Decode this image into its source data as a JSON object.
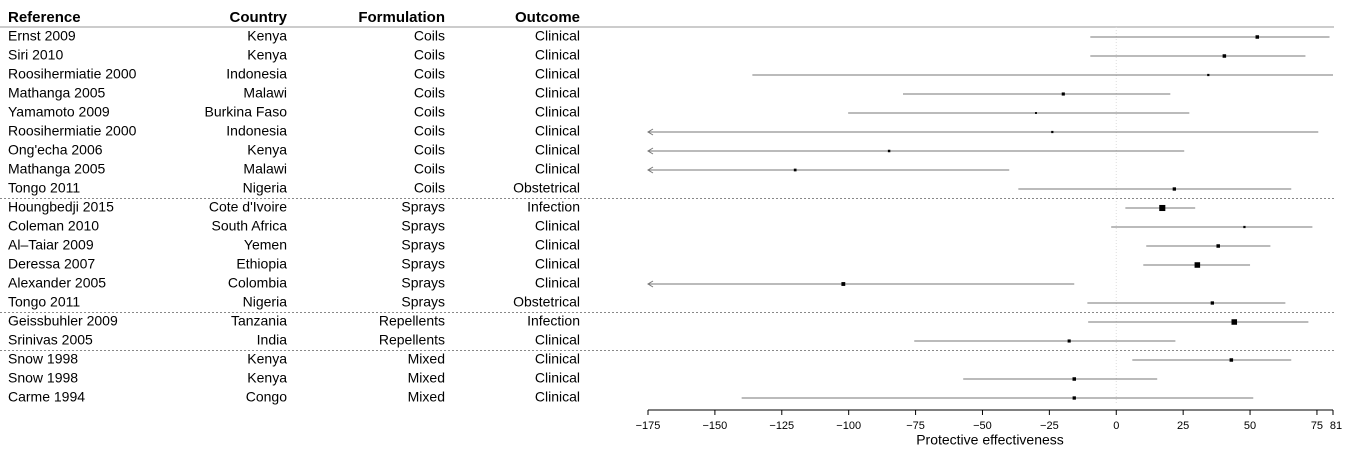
{
  "chart_data": {
    "type": "forest",
    "headers": {
      "reference": "Reference",
      "country": "Country",
      "formulation": "Formulation",
      "outcome": "Outcome"
    },
    "rows": [
      {
        "reference": "Ernst 2009",
        "country": "Kenya",
        "formulation": "Coils",
        "outcome": "Clinical",
        "estimate": 52.7,
        "lower": -9.7,
        "upper": 79.7,
        "weight": 1
      },
      {
        "reference": "Siri 2010",
        "country": "Kenya",
        "formulation": "Coils",
        "outcome": "Clinical",
        "estimate": 40.4,
        "lower": -9.7,
        "upper": 70.7,
        "weight": 1
      },
      {
        "reference": "Roosihermiatie 2000",
        "country": "Indonesia",
        "formulation": "Coils",
        "outcome": "Clinical",
        "estimate": 34.4,
        "lower": -136,
        "upper": 81,
        "weight": 0.4
      },
      {
        "reference": "Mathanga 2005",
        "country": "Malawi",
        "formulation": "Coils",
        "outcome": "Clinical",
        "estimate": -19.8,
        "lower": -79.7,
        "upper": 20.2,
        "weight": 0.8
      },
      {
        "reference": "Yamamoto 2009",
        "country": "Burkina Faso",
        "formulation": "Coils",
        "outcome": "Clinical",
        "estimate": -30,
        "lower": -100.2,
        "upper": 27.3,
        "weight": 0.3
      },
      {
        "reference": "Roosihermiatie 2000",
        "country": "Indonesia",
        "formulation": "Coils",
        "outcome": "Clinical",
        "estimate": -23.9,
        "lower": null,
        "upper": 75.5,
        "weight": 0.4
      },
      {
        "reference": "Ong'echa 2006",
        "country": "Kenya",
        "formulation": "Coils",
        "outcome": "Clinical",
        "estimate": -84.9,
        "lower": null,
        "upper": 25.4,
        "weight": 0.5
      },
      {
        "reference": "Mathanga 2005",
        "country": "Malawi",
        "formulation": "Coils",
        "outcome": "Clinical",
        "estimate": -120,
        "lower": null,
        "upper": -40,
        "weight": 0.6
      },
      {
        "reference": "Tongo 2011",
        "country": "Nigeria",
        "formulation": "Coils",
        "outcome": "Obstetrical",
        "estimate": 21.7,
        "lower": -36.6,
        "upper": 65.4,
        "weight": 0.9
      },
      {
        "reference": "Houngbedji 2015",
        "country": "Cote d'Ivoire",
        "formulation": "Sprays",
        "outcome": "Infection",
        "estimate": 17.2,
        "lower": 3.4,
        "upper": 29.5,
        "weight": 3
      },
      {
        "reference": "Coleman 2010",
        "country": "South Africa",
        "formulation": "Sprays",
        "outcome": "Clinical",
        "estimate": 47.9,
        "lower": -1.9,
        "upper": 73.3,
        "weight": 0.4
      },
      {
        "reference": "Al–Taiar 2009",
        "country": "Yemen",
        "formulation": "Sprays",
        "outcome": "Clinical",
        "estimate": 38.1,
        "lower": 11.2,
        "upper": 57.6,
        "weight": 1
      },
      {
        "reference": "Deressa 2007",
        "country": "Ethiopia",
        "formulation": "Sprays",
        "outcome": "Clinical",
        "estimate": 30.3,
        "lower": 10.1,
        "upper": 50,
        "weight": 2.5
      },
      {
        "reference": "Alexander 2005",
        "country": "Colombia",
        "formulation": "Sprays",
        "outcome": "Clinical",
        "estimate": -102,
        "lower": null,
        "upper": -15.7,
        "weight": 1.2
      },
      {
        "reference": "Tongo 2011",
        "country": "Nigeria",
        "formulation": "Sprays",
        "outcome": "Obstetrical",
        "estimate": 35.9,
        "lower": -10.8,
        "upper": 63.2,
        "weight": 0.9
      },
      {
        "reference": "Geissbuhler 2009",
        "country": "Tanzania",
        "formulation": "Repellents",
        "outcome": "Infection",
        "estimate": 44.1,
        "lower": -10.5,
        "upper": 71.8,
        "weight": 2.5
      },
      {
        "reference": "Srinivas 2005",
        "country": "India",
        "formulation": "Repellents",
        "outcome": "Clinical",
        "estimate": -17.6,
        "lower": -75.5,
        "upper": 22.1,
        "weight": 0.8
      },
      {
        "reference": "Snow 1998",
        "country": "Kenya",
        "formulation": "Mixed",
        "outcome": "Clinical",
        "estimate": 43,
        "lower": 6,
        "upper": 65.4,
        "weight": 1
      },
      {
        "reference": "Snow 1998",
        "country": "Kenya",
        "formulation": "Mixed",
        "outcome": "Clinical",
        "estimate": -15.7,
        "lower": -57.2,
        "upper": 15.3,
        "weight": 1
      },
      {
        "reference": "Carme 1994",
        "country": "Congo",
        "formulation": "Mixed",
        "outcome": "Clinical",
        "estimate": -15.7,
        "lower": -140,
        "upper": 51.2,
        "weight": 0.9
      }
    ],
    "xlabel": "Protective effectiveness",
    "xlim": [
      -175,
      81
    ],
    "xticks": [
      -175,
      -150,
      -125,
      -100,
      -75,
      -50,
      -25,
      0,
      25,
      50,
      75,
      81
    ]
  }
}
